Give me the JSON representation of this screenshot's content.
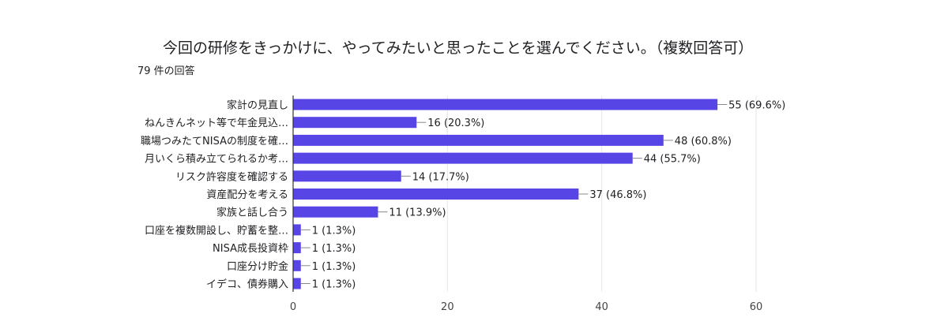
{
  "title": "今回の研修をきっかけに、やってみたいと思ったことを選んでください。（複数回答可）",
  "response_count": "79 件の回答",
  "colors": {
    "bar": "#5745e6",
    "grid": "#e6e6e6",
    "axis": "#333333"
  },
  "chart_data": {
    "type": "bar",
    "orientation": "horizontal",
    "categories": [
      "家計の見直し",
      "ねんきんネット等で年金見込…",
      "職場つみたてNISAの制度を確…",
      "月いくら積み立てられるか考…",
      "リスク許容度を確認する",
      "資産配分を考える",
      "家族と話し合う",
      "口座を複数開設し、貯蓄を整…",
      "NISA成長投資枠",
      "口座分け貯金",
      "イデコ、債券購入"
    ],
    "values": [
      55,
      16,
      48,
      44,
      14,
      37,
      11,
      1,
      1,
      1,
      1
    ],
    "value_labels": [
      "55 (69.6%)",
      "16 (20.3%)",
      "48 (60.8%)",
      "44 (55.7%)",
      "14 (17.7%)",
      "37 (46.8%)",
      "11 (13.9%)",
      "1 (1.3%)",
      "1 (1.3%)",
      "1 (1.3%)",
      "1 (1.3%)"
    ],
    "xlim": [
      0,
      60
    ],
    "xticks": [
      "0",
      "20",
      "40",
      "60"
    ],
    "grid": true
  }
}
